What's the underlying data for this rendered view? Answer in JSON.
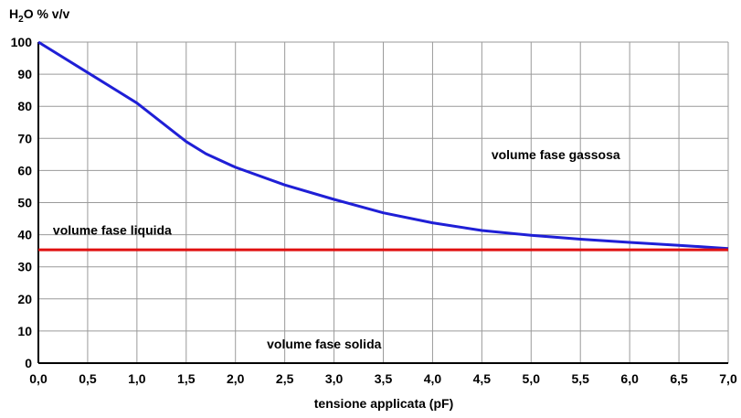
{
  "chart_data": {
    "type": "line",
    "ylabel": "H2O % v/v",
    "ylabel_main": "H",
    "ylabel_sub": "2",
    "ylabel_rest": "O % v/v",
    "xlabel": "tensione applicata (pF)",
    "xlim": [
      0,
      7
    ],
    "ylim": [
      0,
      100
    ],
    "grid": true,
    "x_ticks": [
      0,
      0.5,
      1,
      1.5,
      2,
      2.5,
      3,
      3.5,
      4,
      4.5,
      5,
      5.5,
      6,
      6.5,
      7
    ],
    "x_tick_labels": [
      "0,0",
      "0,5",
      "1,0",
      "1,5",
      "2,0",
      "2,5",
      "3,0",
      "3,5",
      "4,0",
      "4,5",
      "5,0",
      "5,5",
      "6,0",
      "6,5",
      "7,0"
    ],
    "y_ticks": [
      0,
      10,
      20,
      30,
      40,
      50,
      60,
      70,
      80,
      90,
      100
    ],
    "y_tick_labels": [
      "0",
      "10",
      "20",
      "30",
      "40",
      "50",
      "60",
      "70",
      "80",
      "90",
      "100"
    ],
    "series": [
      {
        "color": "#1f1fd6",
        "x": [
          0,
          0.5,
          1.0,
          1.5,
          1.7,
          2.0,
          2.5,
          3.0,
          3.5,
          4.0,
          4.5,
          5.0,
          5.5,
          6.0,
          6.5,
          7.0
        ],
        "y": [
          100,
          90.5,
          81,
          69,
          65.2,
          61,
          55.5,
          51,
          46.8,
          43.7,
          41.3,
          39.8,
          38.6,
          37.6,
          36.7,
          35.7
        ]
      },
      {
        "color": "#e01010",
        "x": [
          0,
          7
        ],
        "y": [
          35.3,
          35.3
        ]
      }
    ],
    "annotations": [
      {
        "text": "volume fase gassosa",
        "x": 5.25,
        "y": 65
      },
      {
        "text": "volume fase liquida",
        "x": 0.75,
        "y": 41.5
      },
      {
        "text": "volume fase solida",
        "x": 2.9,
        "y": 6
      }
    ]
  }
}
